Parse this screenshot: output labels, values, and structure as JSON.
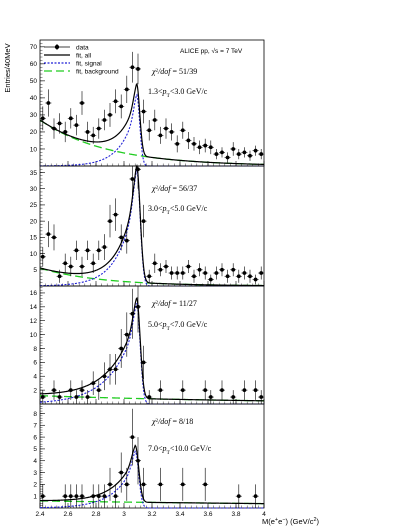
{
  "figure": {
    "ylabel": "Entries/40MeV",
    "xlabel_parts": [
      "M(e",
      "+",
      "e",
      "−",
      ") (GeV/c",
      "2",
      ")"
    ],
    "collaboration": "ALICE pp,",
    "sqrt_s": "√s",
    "energy": " = 7 TeV",
    "legend": [
      {
        "label": "data",
        "style": "marker",
        "color": "#000000"
      },
      {
        "label": "fit, all",
        "style": "solid",
        "color": "#000000"
      },
      {
        "label": "fit, signal",
        "style": "dotted",
        "color": "#1f1fd6"
      },
      {
        "label": "fit, background",
        "style": "dashed",
        "color": "#22cc22"
      }
    ]
  },
  "chart_data": [
    {
      "type": "scatter",
      "chi2": "51/39",
      "pt_low": "1.3",
      "pt_high": "3.0",
      "pt_unit": "GeV/c",
      "xlim": [
        2.4,
        4.0
      ],
      "ylim": [
        0,
        74
      ],
      "yticks": [
        10,
        20,
        30,
        40,
        50,
        60,
        70
      ],
      "xticks": [
        2.4,
        2.6,
        2.8,
        3.0,
        3.2,
        3.4,
        3.6,
        3.8,
        4.0
      ],
      "points": [
        {
          "x": 2.42,
          "y": 28,
          "err": 7
        },
        {
          "x": 2.46,
          "y": 37,
          "err": 8
        },
        {
          "x": 2.5,
          "y": 22,
          "err": 6
        },
        {
          "x": 2.54,
          "y": 25,
          "err": 6
        },
        {
          "x": 2.58,
          "y": 20,
          "err": 6
        },
        {
          "x": 2.62,
          "y": 28,
          "err": 6
        },
        {
          "x": 2.66,
          "y": 24,
          "err": 6
        },
        {
          "x": 2.7,
          "y": 37,
          "err": 7
        },
        {
          "x": 2.74,
          "y": 20,
          "err": 6
        },
        {
          "x": 2.78,
          "y": 18,
          "err": 5
        },
        {
          "x": 2.82,
          "y": 22,
          "err": 6
        },
        {
          "x": 2.86,
          "y": 27,
          "err": 6
        },
        {
          "x": 2.9,
          "y": 30,
          "err": 7
        },
        {
          "x": 2.94,
          "y": 38,
          "err": 7
        },
        {
          "x": 2.98,
          "y": 35,
          "err": 7
        },
        {
          "x": 3.02,
          "y": 45,
          "err": 8
        },
        {
          "x": 3.06,
          "y": 58,
          "err": 9
        },
        {
          "x": 3.1,
          "y": 57,
          "err": 9
        },
        {
          "x": 3.14,
          "y": 32,
          "err": 7
        },
        {
          "x": 3.18,
          "y": 21,
          "err": 6
        },
        {
          "x": 3.22,
          "y": 27,
          "err": 6
        },
        {
          "x": 3.26,
          "y": 18,
          "err": 5
        },
        {
          "x": 3.3,
          "y": 22,
          "err": 6
        },
        {
          "x": 3.34,
          "y": 20,
          "err": 5
        },
        {
          "x": 3.38,
          "y": 13,
          "err": 5
        },
        {
          "x": 3.42,
          "y": 21,
          "err": 5
        },
        {
          "x": 3.46,
          "y": 15,
          "err": 5
        },
        {
          "x": 3.5,
          "y": 13,
          "err": 4
        },
        {
          "x": 3.54,
          "y": 11,
          "err": 4
        },
        {
          "x": 3.58,
          "y": 12,
          "err": 4
        },
        {
          "x": 3.62,
          "y": 11,
          "err": 4
        },
        {
          "x": 3.66,
          "y": 7,
          "err": 3
        },
        {
          "x": 3.7,
          "y": 8,
          "err": 3
        },
        {
          "x": 3.74,
          "y": 5,
          "err": 3
        },
        {
          "x": 3.78,
          "y": 10,
          "err": 4
        },
        {
          "x": 3.82,
          "y": 7,
          "err": 3
        },
        {
          "x": 3.86,
          "y": 8,
          "err": 3
        },
        {
          "x": 3.9,
          "y": 6,
          "err": 3
        },
        {
          "x": 3.94,
          "y": 9,
          "err": 3
        },
        {
          "x": 3.98,
          "y": 7,
          "err": 3
        }
      ],
      "bkg": {
        "a": 27,
        "b": 2.1
      },
      "sig": {
        "amp": 42,
        "mu": 3.09,
        "sigma": 0.022,
        "tail": 0.11
      }
    },
    {
      "type": "scatter",
      "chi2": "56/37",
      "pt_low": "3.0",
      "pt_high": "5.0",
      "pt_unit": "GeV/c",
      "xlim": [
        2.4,
        4.0
      ],
      "ylim": [
        0,
        37
      ],
      "yticks": [
        5,
        10,
        15,
        20,
        25,
        30,
        35
      ],
      "xticks": [
        2.4,
        2.6,
        2.8,
        3.0,
        3.2,
        3.4,
        3.6,
        3.8,
        4.0
      ],
      "points": [
        {
          "x": 2.42,
          "y": 9,
          "err": 3
        },
        {
          "x": 2.46,
          "y": 16,
          "err": 4
        },
        {
          "x": 2.5,
          "y": 15,
          "err": 4
        },
        {
          "x": 2.54,
          "y": 3,
          "err": 2
        },
        {
          "x": 2.58,
          "y": 7,
          "err": 3
        },
        {
          "x": 2.62,
          "y": 6,
          "err": 3
        },
        {
          "x": 2.66,
          "y": 11,
          "err": 3
        },
        {
          "x": 2.7,
          "y": 6,
          "err": 3
        },
        {
          "x": 2.74,
          "y": 11,
          "err": 3
        },
        {
          "x": 2.78,
          "y": 7,
          "err": 3
        },
        {
          "x": 2.82,
          "y": 11,
          "err": 3
        },
        {
          "x": 2.86,
          "y": 12,
          "err": 4
        },
        {
          "x": 2.9,
          "y": 20,
          "err": 5
        },
        {
          "x": 2.94,
          "y": 22,
          "err": 5
        },
        {
          "x": 2.98,
          "y": 15,
          "err": 4
        },
        {
          "x": 3.02,
          "y": 14,
          "err": 4
        },
        {
          "x": 3.06,
          "y": 33,
          "err": 6
        },
        {
          "x": 3.1,
          "y": 36,
          "err": 6
        },
        {
          "x": 3.14,
          "y": 20,
          "err": 5
        },
        {
          "x": 3.18,
          "y": 3,
          "err": 2
        },
        {
          "x": 3.22,
          "y": 7,
          "err": 3
        },
        {
          "x": 3.26,
          "y": 5,
          "err": 2
        },
        {
          "x": 3.3,
          "y": 6,
          "err": 2
        },
        {
          "x": 3.34,
          "y": 4,
          "err": 2
        },
        {
          "x": 3.38,
          "y": 4,
          "err": 2
        },
        {
          "x": 3.42,
          "y": 4,
          "err": 2
        },
        {
          "x": 3.46,
          "y": 6,
          "err": 2
        },
        {
          "x": 3.5,
          "y": 3,
          "err": 2
        },
        {
          "x": 3.54,
          "y": 5,
          "err": 2
        },
        {
          "x": 3.58,
          "y": 4,
          "err": 2
        },
        {
          "x": 3.62,
          "y": 2,
          "err": 1.5
        },
        {
          "x": 3.66,
          "y": 4,
          "err": 2
        },
        {
          "x": 3.7,
          "y": 5,
          "err": 2
        },
        {
          "x": 3.74,
          "y": 3,
          "err": 2
        },
        {
          "x": 3.78,
          "y": 5,
          "err": 2
        },
        {
          "x": 3.82,
          "y": 3,
          "err": 2
        },
        {
          "x": 3.86,
          "y": 4,
          "err": 2
        },
        {
          "x": 3.9,
          "y": 3,
          "err": 2
        },
        {
          "x": 3.94,
          "y": 2,
          "err": 1.5
        },
        {
          "x": 3.98,
          "y": 4,
          "err": 2
        }
      ],
      "bkg": {
        "a": 5.5,
        "b": 2.3
      },
      "sig": {
        "amp": 36,
        "mu": 3.09,
        "sigma": 0.025,
        "tail": 0.12
      }
    },
    {
      "type": "scatter",
      "chi2": "11/27",
      "pt_low": "5.0",
      "pt_high": "7.0",
      "pt_unit": "GeV/c",
      "xlim": [
        2.4,
        4.0
      ],
      "ylim": [
        0,
        17
      ],
      "yticks": [
        2,
        4,
        6,
        8,
        10,
        12,
        14,
        16
      ],
      "xticks": [
        2.4,
        2.6,
        2.8,
        3.0,
        3.2,
        3.4,
        3.6,
        3.8,
        4.0
      ],
      "points": [
        {
          "x": 2.42,
          "y": 1,
          "err": 1
        },
        {
          "x": 2.5,
          "y": 2,
          "err": 1.4
        },
        {
          "x": 2.54,
          "y": 1,
          "err": 1
        },
        {
          "x": 2.62,
          "y": 2,
          "err": 1.4
        },
        {
          "x": 2.66,
          "y": 1,
          "err": 1
        },
        {
          "x": 2.7,
          "y": 2,
          "err": 1.4
        },
        {
          "x": 2.74,
          "y": 1,
          "err": 1
        },
        {
          "x": 2.78,
          "y": 3,
          "err": 1.7
        },
        {
          "x": 2.82,
          "y": 2,
          "err": 1.4
        },
        {
          "x": 2.86,
          "y": 4,
          "err": 2
        },
        {
          "x": 2.9,
          "y": 5,
          "err": 2.2
        },
        {
          "x": 2.94,
          "y": 5,
          "err": 2.2
        },
        {
          "x": 2.98,
          "y": 8,
          "err": 2.8
        },
        {
          "x": 3.02,
          "y": 10,
          "err": 3.2
        },
        {
          "x": 3.06,
          "y": 13,
          "err": 3.6
        },
        {
          "x": 3.1,
          "y": 14,
          "err": 3.7
        },
        {
          "x": 3.14,
          "y": 6,
          "err": 2.4
        },
        {
          "x": 3.18,
          "y": 1,
          "err": 1
        },
        {
          "x": 3.26,
          "y": 2,
          "err": 1.4
        },
        {
          "x": 3.42,
          "y": 2,
          "err": 1.4
        },
        {
          "x": 3.58,
          "y": 2,
          "err": 1.4
        },
        {
          "x": 3.62,
          "y": 1,
          "err": 1
        },
        {
          "x": 3.7,
          "y": 2,
          "err": 1.4
        },
        {
          "x": 3.78,
          "y": 1,
          "err": 1
        },
        {
          "x": 3.86,
          "y": 2,
          "err": 1.4
        },
        {
          "x": 3.94,
          "y": 2,
          "err": 1.4
        },
        {
          "x": 3.98,
          "y": 1,
          "err": 1
        }
      ],
      "bkg": {
        "a": 1.2,
        "b": 0.6
      },
      "sig": {
        "amp": 14.5,
        "mu": 3.09,
        "sigma": 0.025,
        "tail": 0.18
      }
    },
    {
      "type": "scatter",
      "chi2": "8/18",
      "pt_low": "7.0",
      "pt_high": "10.0",
      "pt_unit": "GeV/c",
      "xlim": [
        2.4,
        4.0
      ],
      "ylim": [
        0,
        8.8
      ],
      "yticks": [
        1,
        2,
        3,
        4,
        5,
        6,
        7,
        8
      ],
      "xticks": [
        2.4,
        2.6,
        2.8,
        3.0,
        3.2,
        3.4,
        3.6,
        3.8,
        4.0
      ],
      "xticklabels": [
        "2.4",
        "2.6",
        "2.8",
        "3",
        "3.2",
        "3.4",
        "3.6",
        "3.8",
        "4"
      ],
      "points": [
        {
          "x": 2.42,
          "y": 1,
          "err": 1
        },
        {
          "x": 2.58,
          "y": 1,
          "err": 1
        },
        {
          "x": 2.62,
          "y": 1,
          "err": 1
        },
        {
          "x": 2.66,
          "y": 1,
          "err": 1
        },
        {
          "x": 2.7,
          "y": 1,
          "err": 1
        },
        {
          "x": 2.78,
          "y": 1,
          "err": 1
        },
        {
          "x": 2.82,
          "y": 1,
          "err": 1
        },
        {
          "x": 2.86,
          "y": 1,
          "err": 1
        },
        {
          "x": 2.9,
          "y": 2,
          "err": 1.4
        },
        {
          "x": 2.94,
          "y": 1,
          "err": 1
        },
        {
          "x": 2.98,
          "y": 3,
          "err": 1.7
        },
        {
          "x": 3.02,
          "y": 2,
          "err": 1.4
        },
        {
          "x": 3.06,
          "y": 6,
          "err": 2.4
        },
        {
          "x": 3.1,
          "y": 4,
          "err": 2
        },
        {
          "x": 3.14,
          "y": 2,
          "err": 1.4
        },
        {
          "x": 3.26,
          "y": 2,
          "err": 1.4
        },
        {
          "x": 3.42,
          "y": 2,
          "err": 1.4
        },
        {
          "x": 3.58,
          "y": 2,
          "err": 1.4
        },
        {
          "x": 3.82,
          "y": 1,
          "err": 1
        },
        {
          "x": 3.94,
          "y": 1,
          "err": 1
        }
      ],
      "bkg": {
        "a": 0.6,
        "b": 0.3
      },
      "sig": {
        "amp": 4.8,
        "mu": 3.08,
        "sigma": 0.025,
        "tail": 0.14
      }
    }
  ]
}
